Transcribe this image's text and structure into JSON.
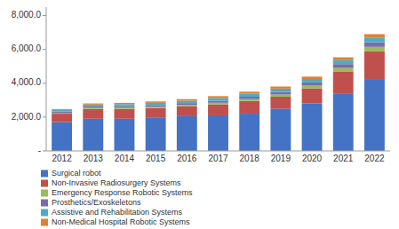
{
  "chart_data": {
    "type": "bar",
    "stacked": true,
    "grid": false,
    "legend": "lower left",
    "categories": [
      "2012",
      "2013",
      "2014",
      "2015",
      "2016",
      "2017",
      "2018",
      "2019",
      "2020",
      "2021",
      "2022"
    ],
    "series": [
      {
        "name": "Surgical robot",
        "color": "#4472C4",
        "values": [
          1700,
          1900,
          1900,
          1950,
          2050,
          2100,
          2200,
          2500,
          2800,
          3400,
          4200
        ]
      },
      {
        "name": "Non-Invasive Radiosurgery Systems",
        "color": "#C0504D",
        "values": [
          500,
          580,
          580,
          580,
          580,
          650,
          750,
          700,
          900,
          1300,
          1700
        ]
      },
      {
        "name": "Emergency Response Robotic Systems",
        "color": "#9BBB59",
        "values": [
          55,
          65,
          70,
          75,
          85,
          95,
          110,
          130,
          160,
          200,
          250
        ]
      },
      {
        "name": "Prosthetics/Exoskeletons",
        "color": "#7B6CA8",
        "values": [
          75,
          85,
          95,
          105,
          110,
          120,
          140,
          160,
          185,
          230,
          270
        ]
      },
      {
        "name": "Assistive and Rehabilitation Systems",
        "color": "#4BACC6",
        "values": [
          90,
          110,
          120,
          130,
          140,
          165,
          185,
          190,
          205,
          235,
          280
        ]
      },
      {
        "name": "Non-Medical Hospital Robotic Systems",
        "color": "#E08030",
        "values": [
          55,
          65,
          75,
          85,
          95,
          105,
          115,
          125,
          140,
          165,
          200
        ]
      }
    ],
    "ylim": [
      0,
      8500
    ],
    "yticks": [
      {
        "value": 0,
        "label": "-"
      },
      {
        "value": 2000,
        "label": "2,000.0"
      },
      {
        "value": 4000,
        "label": "4,000.0"
      },
      {
        "value": 6000,
        "label": "6,000.0"
      },
      {
        "value": 8000,
        "label": "8,000.0"
      }
    ]
  }
}
